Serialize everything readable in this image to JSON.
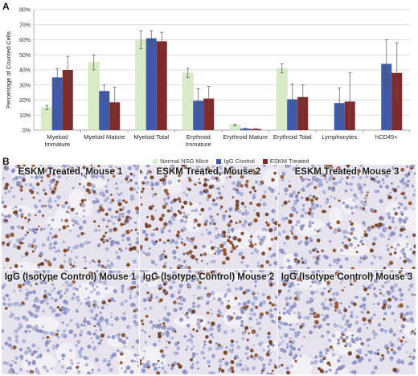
{
  "panel_a_label": "A",
  "panel_b_label": "B",
  "chart_data": {
    "type": "bar",
    "title": "",
    "xlabel": "",
    "ylabel": "Percentage of Counted Cells",
    "ylim": [
      0,
      80
    ],
    "yticks": [
      "0%",
      "10%",
      "20%",
      "30%",
      "40%",
      "50%",
      "60%",
      "70%",
      "80%"
    ],
    "ytick_values": [
      0,
      10,
      20,
      30,
      40,
      50,
      60,
      70,
      80
    ],
    "grid": true,
    "legend_position": "bottom",
    "categories": [
      [
        "Myeloid",
        "Immature"
      ],
      [
        "Myeloid Mature"
      ],
      [
        "Myeloid Total"
      ],
      [
        "Erythroid",
        "Immature"
      ],
      [
        "Erythroid Mature"
      ],
      [
        "Erythroid Total"
      ],
      [
        "Lymphocytes"
      ],
      [
        "hCD45+"
      ]
    ],
    "series": [
      {
        "name": "Normal NSG Mice",
        "color": "#d7ebc9",
        "values": [
          15,
          45,
          60,
          38,
          3.5,
          41,
          null,
          null
        ],
        "errors": [
          1.5,
          5,
          6,
          3,
          0.5,
          3,
          null,
          null
        ]
      },
      {
        "name": "IgG Control",
        "color": "#3f5aa8",
        "values": [
          35,
          26,
          61,
          19.5,
          1,
          20.5,
          18,
          44
        ],
        "errors": [
          6,
          4,
          5,
          8,
          0.3,
          10,
          10,
          16
        ]
      },
      {
        "name": "ESKM Treated",
        "color": "#7d2b2b",
        "values": [
          40,
          18.5,
          59,
          21,
          0.8,
          22,
          19,
          38
        ],
        "errors": [
          9,
          10,
          6,
          8,
          0.3,
          8,
          19,
          20
        ]
      }
    ]
  },
  "micrographs": [
    {
      "label": "ESKM Treated, Mouse 1",
      "density": 0.55
    },
    {
      "label": "ESKM Treated, Mouse 2",
      "density": 0.75
    },
    {
      "label": "ESKM Treated, Mouse 3",
      "density": 0.5
    },
    {
      "label": "IgG (Isotype Control) Mouse 1",
      "density": 0.15
    },
    {
      "label": "IgG (Isotype Control) Mouse 2",
      "density": 0.4
    },
    {
      "label": "IgG (Isotype Control) Mouse 3",
      "density": 0.35
    }
  ]
}
